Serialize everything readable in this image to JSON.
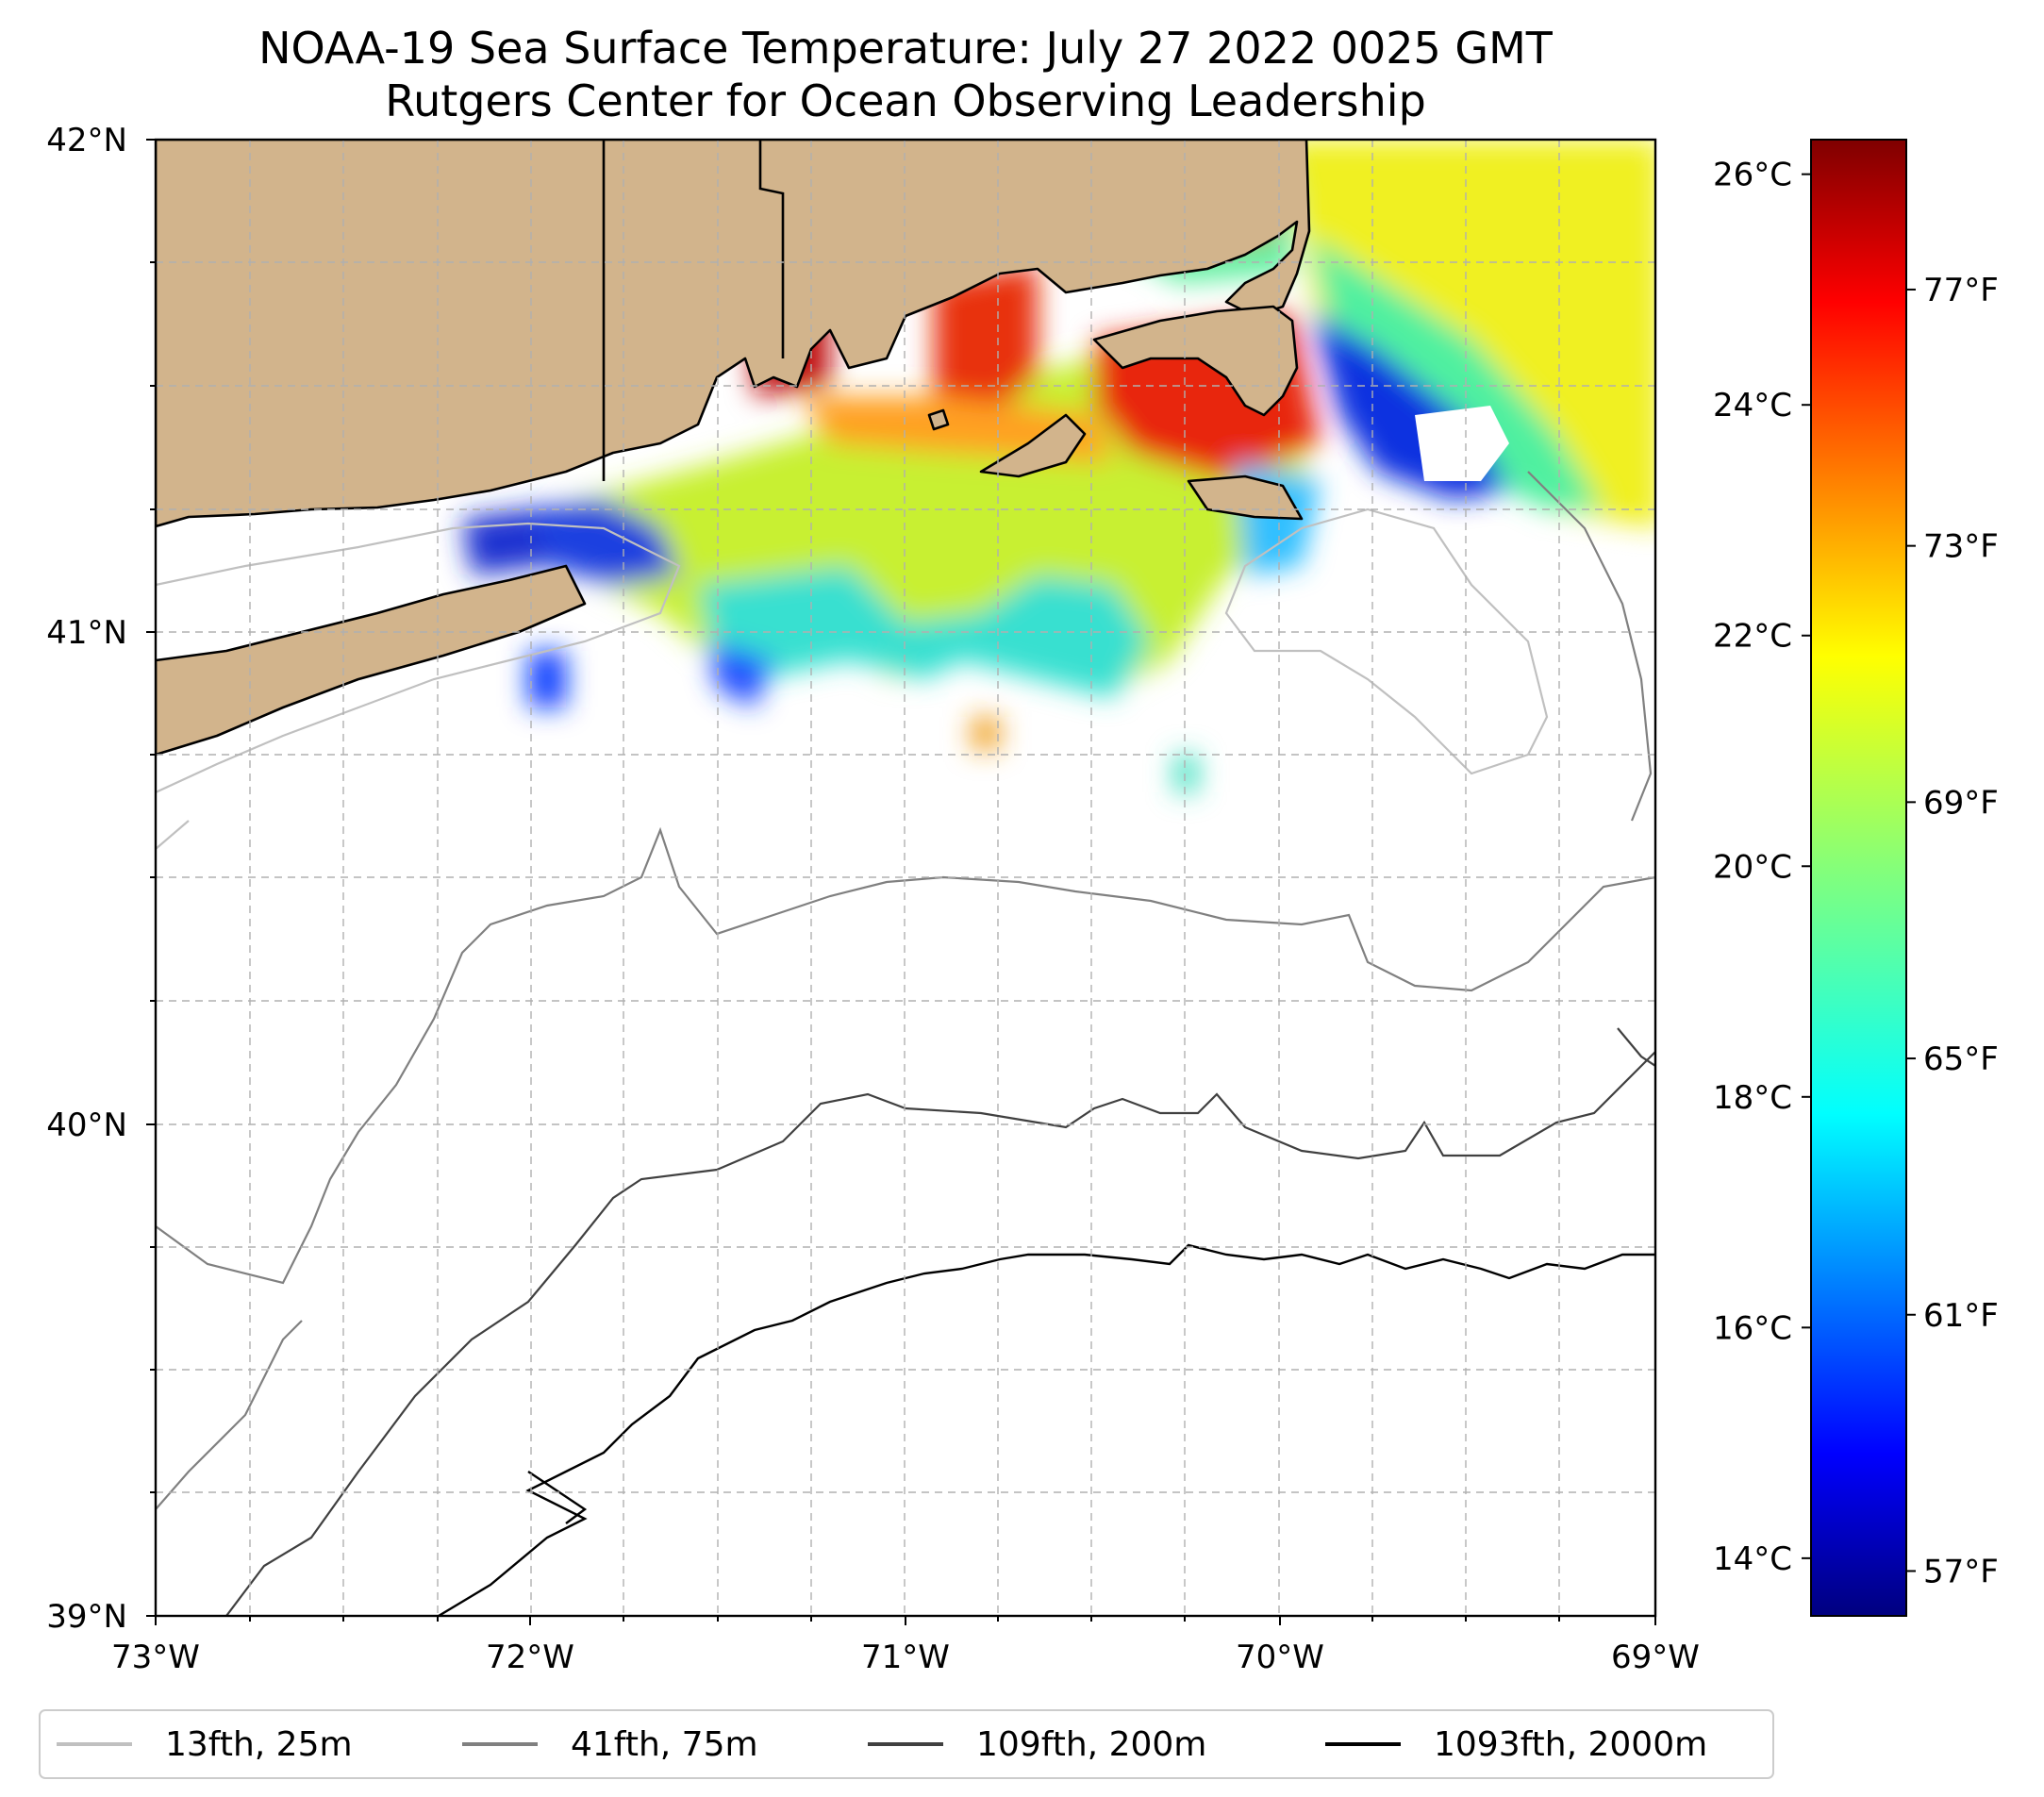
{
  "title": {
    "line1": "NOAA-19 Sea Surface Temperature: July 27 2022 0025 GMT",
    "line2": "Rutgers Center for Ocean Observing Leadership"
  },
  "map": {
    "lon_range": [
      -73,
      -69
    ],
    "lat_range": [
      39,
      42
    ],
    "x_tick_labels": [
      "73°W",
      "72°W",
      "71°W",
      "70°W",
      "69°W"
    ],
    "y_tick_labels": [
      "42°N",
      "41°N",
      "40°N",
      "39°N"
    ],
    "land_color": "#d2b48c",
    "gridlines": "dashed"
  },
  "colorbar": {
    "colormap": "jet",
    "celsius_ticks": [
      "26°C",
      "24°C",
      "22°C",
      "20°C",
      "18°C",
      "16°C",
      "14°C"
    ],
    "fahrenheit_ticks": [
      "77°F",
      "73°F",
      "69°F",
      "65°F",
      "61°F",
      "57°F"
    ],
    "celsius_values": [
      26,
      24,
      22,
      20,
      18,
      16,
      14
    ],
    "fahrenheit_values": [
      77,
      73,
      69,
      65,
      61,
      57
    ],
    "range_c": [
      13.5,
      26.3
    ]
  },
  "legend": {
    "entries": [
      {
        "label": "13fth, 25m",
        "color": "#c0c0c0"
      },
      {
        "label": "41fth, 75m",
        "color": "#808080"
      },
      {
        "label": "109fth, 200m",
        "color": "#404040"
      },
      {
        "label": "1093fth, 2000m",
        "color": "#000000"
      }
    ]
  }
}
